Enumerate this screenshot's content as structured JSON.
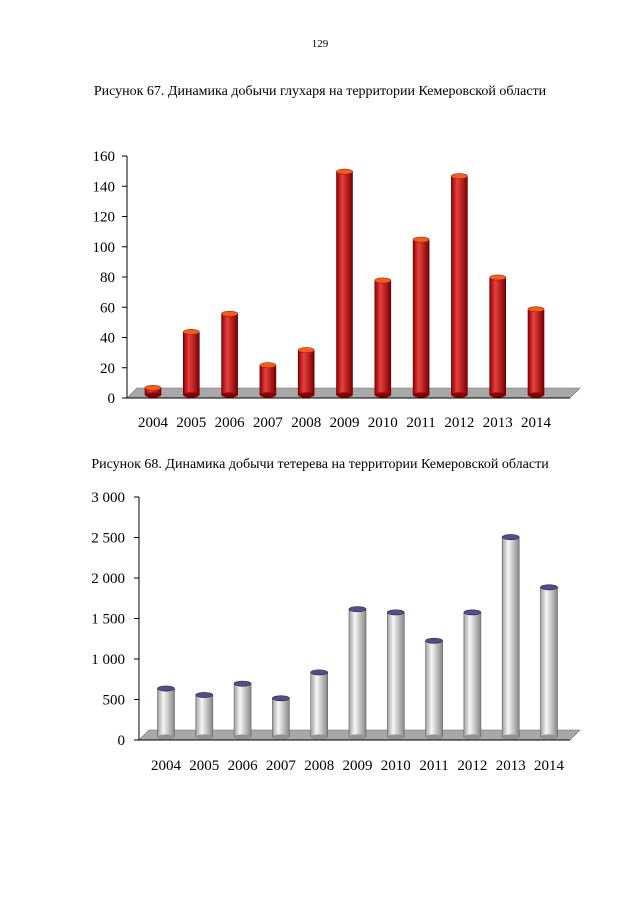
{
  "page": {
    "number": "129"
  },
  "chart_data": [
    {
      "type": "bar",
      "caption": "Рисунок 67. Динамика добычи глухаря на территории Кемеровской области",
      "categories": [
        "2004",
        "2005",
        "2006",
        "2007",
        "2008",
        "2009",
        "2010",
        "2011",
        "2012",
        "2013",
        "2014"
      ],
      "values": [
        8,
        45,
        57,
        23,
        33,
        151,
        79,
        106,
        148,
        81,
        60
      ],
      "ylim": [
        0,
        160
      ],
      "yticks": [
        0,
        20,
        40,
        60,
        80,
        100,
        120,
        140,
        160
      ],
      "ytick_labels": [
        "0",
        "20",
        "40",
        "60",
        "80",
        "100",
        "120",
        "140",
        "160"
      ],
      "xlabel": "",
      "ylabel": "",
      "bar_color": "#e00000",
      "bar_top_color": "#ff5a1a",
      "floor_color": "#a8a8a8",
      "grid": false
    },
    {
      "type": "bar",
      "caption": "Рисунок 68. Динамика добычи тетерева на территории Кемеровской области",
      "categories": [
        "2004",
        "2005",
        "2006",
        "2007",
        "2008",
        "2009",
        "2010",
        "2011",
        "2012",
        "2013",
        "2014"
      ],
      "values": [
        660,
        580,
        720,
        540,
        860,
        1640,
        1600,
        1250,
        1600,
        2530,
        1910
      ],
      "ylim": [
        0,
        3000
      ],
      "yticks": [
        0,
        500,
        1000,
        1500,
        2000,
        2500,
        3000
      ],
      "ytick_labels": [
        "0",
        "500",
        "1 000",
        "1 500",
        "2 000",
        "2 500",
        "3 000"
      ],
      "xlabel": "",
      "ylabel": "",
      "bar_color": "#f4f4f4",
      "bar_top_color": "#5a4a8a",
      "floor_color": "#a8a8a8",
      "grid": false
    }
  ]
}
